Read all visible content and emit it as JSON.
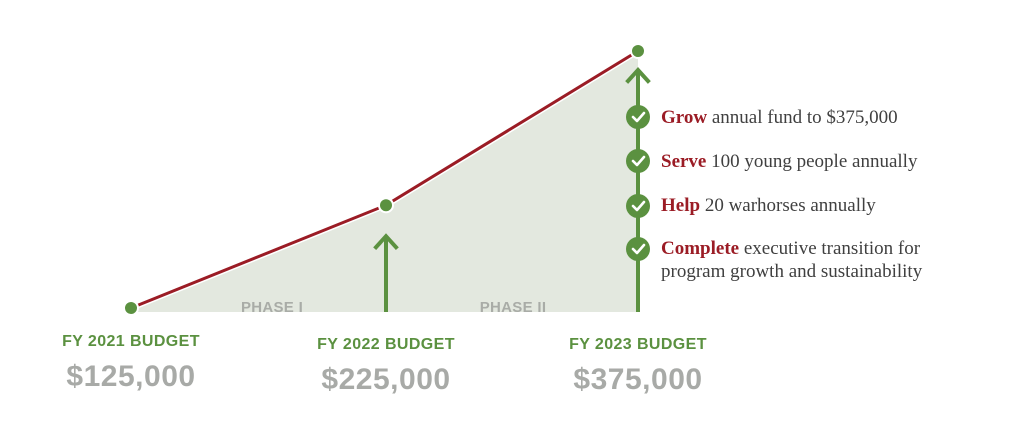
{
  "chart_data": {
    "type": "area",
    "x": [
      "FY 2021",
      "FY 2022",
      "FY 2023"
    ],
    "values": [
      125000,
      225000,
      375000
    ],
    "phases": [
      "PHASE I",
      "PHASE II"
    ],
    "budget_labels": [
      "FY 2021 BUDGET",
      "FY 2022 BUDGET",
      "FY 2023 BUDGET"
    ],
    "budget_values": [
      "$125,000",
      "$225,000",
      "$375,000"
    ],
    "colors": {
      "line": "#9b1c25",
      "area": "#e3e8df",
      "marker": "#5b9140",
      "arrow": "#5b9140",
      "value_text": "#a8aaa7",
      "phase_text": "#a9aca7"
    }
  },
  "goals": [
    {
      "keyword": "Grow",
      "text": " annual fund to $375,000"
    },
    {
      "keyword": "Serve",
      "text": " 100 young people annually"
    },
    {
      "keyword": "Help",
      "text": " 20 warhorses annually"
    },
    {
      "keyword": "Complete",
      "text": " executive transition for",
      "text2": "program growth and sustainability"
    }
  ]
}
